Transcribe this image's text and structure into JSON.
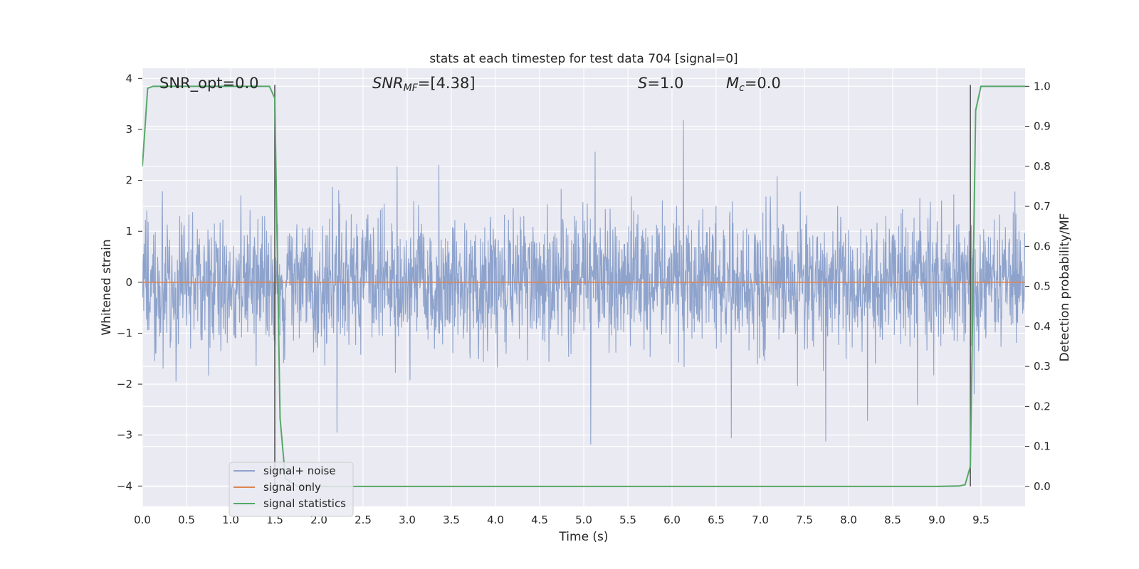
{
  "chart_data": {
    "type": "line",
    "title": "stats at each timestep for test data 704 [signal=0]",
    "xlabel": "Time (s)",
    "ylabel": "Whitened strain",
    "ylabel_right": "Detection probability/MF",
    "xlim": [
      0.0,
      10.0
    ],
    "ylim": [
      -4.4,
      4.2
    ],
    "ylim_right": [
      -0.05,
      1.045
    ],
    "grid": true,
    "legend_position": "lower-left",
    "x_ticks": [
      "0.0",
      "0.5",
      "1.0",
      "1.5",
      "2.0",
      "2.5",
      "3.0",
      "3.5",
      "4.0",
      "4.5",
      "5.0",
      "5.5",
      "6.0",
      "6.5",
      "7.0",
      "7.5",
      "8.0",
      "8.5",
      "9.0",
      "9.5"
    ],
    "y_ticks": [
      "4",
      "3",
      "2",
      "1",
      "0",
      "−1",
      "−2",
      "−3",
      "−4"
    ],
    "y_right_ticks": [
      "1.0",
      "0.9",
      "0.8",
      "0.7",
      "0.6",
      "0.5",
      "0.4",
      "0.3",
      "0.2",
      "0.1",
      "0.0"
    ],
    "annotations": {
      "snr_opt": "SNR_opt=0.0",
      "snr_mf_italic": "SNR",
      "snr_mf_sub": "MF",
      "snr_mf_value": "=[4.38]",
      "s_italic": "S",
      "s_value": "=1.0",
      "mc_italic": "M",
      "mc_sub": "c",
      "mc_value": "=0.0"
    },
    "vertical_lines_x": [
      1.5,
      9.38
    ],
    "colors": {
      "noise": "#8ea3cc",
      "signal": "#dd8452",
      "stats": "#55a868",
      "vline": "#555555",
      "background": "#eaeaf2",
      "grid": "#ffffff"
    },
    "series": [
      {
        "name": "signal+ noise",
        "note_values": "noise trace, amplitude roughly within ±1.7 with spikes to about ±4",
        "values": []
      },
      {
        "name": "signal only",
        "x": [
          0.0,
          10.0
        ],
        "values": [
          0.0,
          0.0
        ]
      },
      {
        "name": "signal statistics",
        "axis": "right",
        "x": [
          0.0,
          0.06,
          0.12,
          0.2,
          0.3,
          0.5,
          0.8,
          1.0,
          1.2,
          1.44,
          1.5,
          1.56,
          1.62,
          1.75,
          2.0,
          3.0,
          5.0,
          7.0,
          8.0,
          9.0,
          9.25,
          9.32,
          9.38,
          9.44,
          9.5,
          10.0
        ],
        "values": [
          0.8,
          0.995,
          1.0,
          1.0,
          1.0,
          1.0,
          1.0,
          1.0,
          1.0,
          1.0,
          0.97,
          0.17,
          0.02,
          0.0,
          0.0,
          0.0,
          0.0,
          0.0,
          0.0,
          0.0,
          0.001,
          0.004,
          0.05,
          0.94,
          1.0,
          1.0
        ]
      }
    ]
  }
}
